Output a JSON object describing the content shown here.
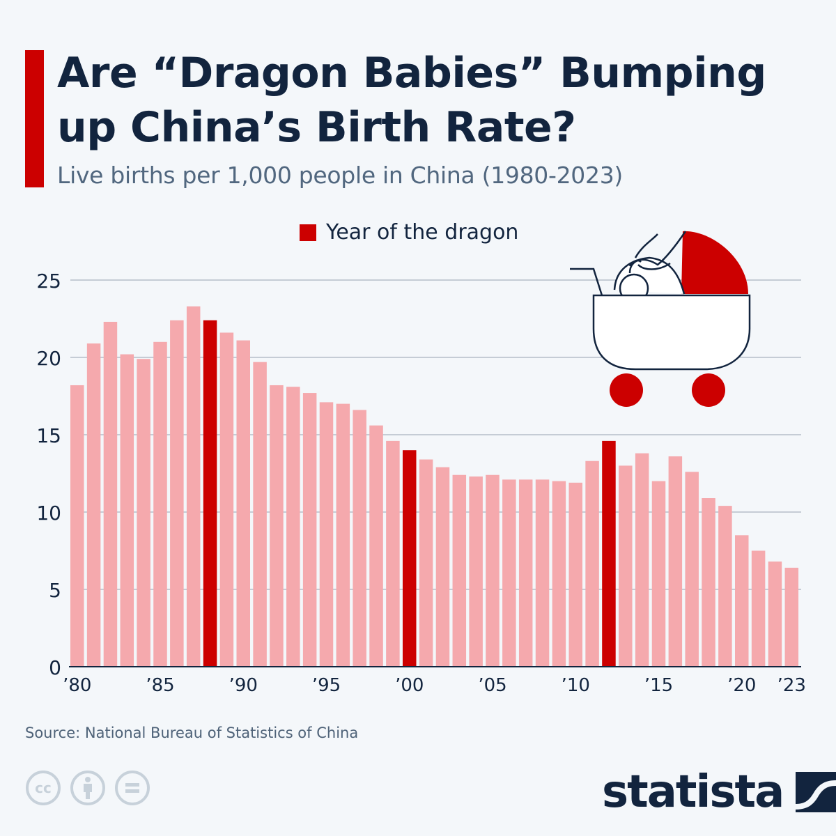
{
  "header": {
    "title": "Are “Dragon Babies” Bumping up China’s Birth Rate?",
    "subtitle": "Live births per 1,000 people in China (1980-2023)"
  },
  "legend": {
    "label": "Year of the dragon",
    "swatch_color": "#cc0000"
  },
  "footer": {
    "source": "Source: National Bureau of Statistics of China",
    "logo_text": "statista",
    "license_icons": [
      "creative-commons-icon",
      "attribution-icon",
      "no-derivatives-icon"
    ]
  },
  "illustration": {
    "name": "dragon-in-stroller"
  },
  "colors": {
    "regular": "#f5a9ad",
    "highlight": "#cc0000",
    "text": "#12243e",
    "grid": "#a9b3bf"
  },
  "chart_data": {
    "type": "bar",
    "title": "Are “Dragon Babies” Bumping up China’s Birth Rate?",
    "subtitle": "Live births per 1,000 people in China (1980-2023)",
    "xlabel": "",
    "ylabel": "",
    "ylim": [
      0,
      25
    ],
    "yticks": [
      0,
      5,
      10,
      15,
      20,
      25
    ],
    "grid": true,
    "legend_position": "top-center",
    "categories": [
      1980,
      1981,
      1982,
      1983,
      1984,
      1985,
      1986,
      1987,
      1988,
      1989,
      1990,
      1991,
      1992,
      1993,
      1994,
      1995,
      1996,
      1997,
      1998,
      1999,
      2000,
      2001,
      2002,
      2003,
      2004,
      2005,
      2006,
      2007,
      2008,
      2009,
      2010,
      2011,
      2012,
      2013,
      2014,
      2015,
      2016,
      2017,
      2018,
      2019,
      2020,
      2021,
      2022,
      2023
    ],
    "xtick_labels": [
      {
        "year": 1980,
        "label": "’80"
      },
      {
        "year": 1985,
        "label": "’85"
      },
      {
        "year": 1990,
        "label": "’90"
      },
      {
        "year": 1995,
        "label": "’95"
      },
      {
        "year": 2000,
        "label": "’00"
      },
      {
        "year": 2005,
        "label": "’05"
      },
      {
        "year": 2010,
        "label": "’10"
      },
      {
        "year": 2015,
        "label": "’15"
      },
      {
        "year": 2020,
        "label": "’20"
      },
      {
        "year": 2023,
        "label": "’23"
      }
    ],
    "values": [
      18.2,
      20.9,
      22.3,
      20.2,
      19.9,
      21.0,
      22.4,
      23.3,
      22.4,
      21.6,
      21.1,
      19.7,
      18.2,
      18.1,
      17.7,
      17.1,
      17.0,
      16.6,
      15.6,
      14.6,
      14.0,
      13.4,
      12.9,
      12.4,
      12.3,
      12.4,
      12.1,
      12.1,
      12.1,
      12.0,
      11.9,
      13.3,
      14.6,
      13.0,
      13.8,
      12.0,
      13.6,
      12.6,
      10.9,
      10.4,
      8.5,
      7.5,
      6.8,
      6.4
    ],
    "highlight_years": [
      1988,
      2000,
      2012
    ],
    "series": [
      {
        "name": "Live births per 1,000 people",
        "color": "#f5a9ad"
      },
      {
        "name": "Year of the dragon",
        "color": "#cc0000"
      }
    ]
  }
}
